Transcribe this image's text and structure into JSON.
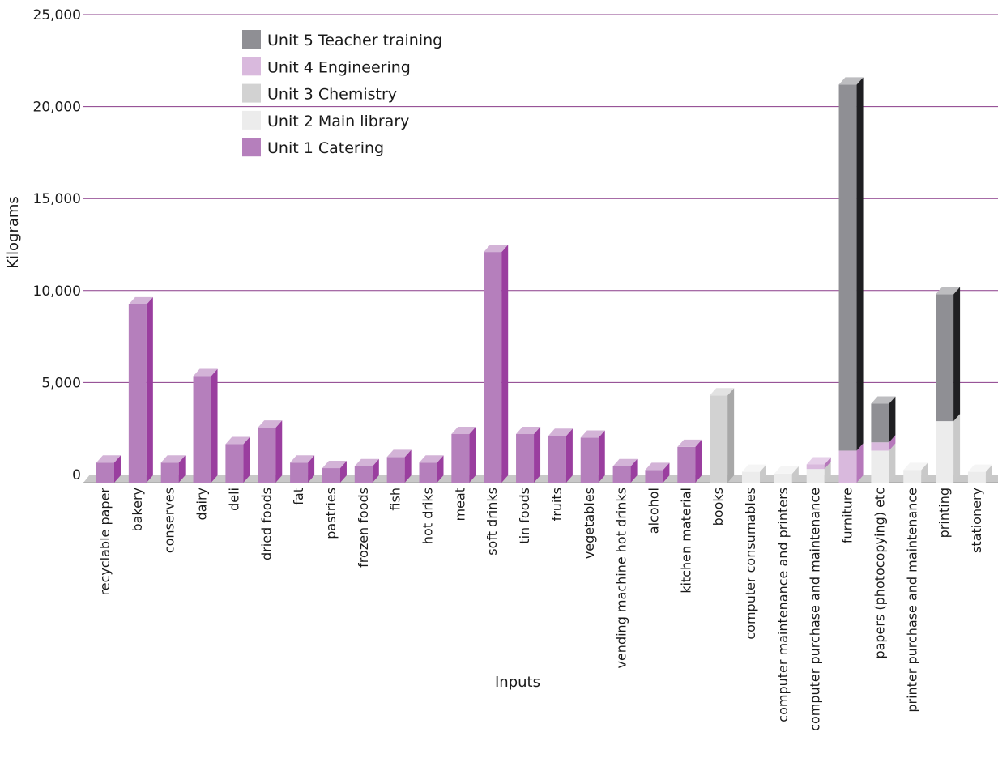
{
  "chart_data": {
    "type": "bar",
    "stacked": true,
    "three_d": true,
    "xlabel": "Inputs",
    "ylabel": "Kilograms",
    "ylim": [
      0,
      25000
    ],
    "yticks": [
      0,
      5000,
      10000,
      15000,
      20000,
      25000
    ],
    "ytick_labels": [
      "0",
      "5,000",
      "10,000",
      "15,000",
      "20,000",
      "25,000"
    ],
    "grid": true,
    "legend_position": "top-left",
    "categories": [
      "recyclable paper",
      "bakery",
      "conserves",
      "dairy",
      "deli",
      "dried foods",
      "fat",
      "pastries",
      "frozen foods",
      "fish",
      "hot driks",
      "meat",
      "soft drinks",
      "tin foods",
      "fruits",
      "vegetables",
      "vending machine hot drinks",
      "alcohol",
      "kitchen material",
      "books",
      "computer consumables",
      "computer maintenance and printers",
      "computer purchase and maintenance",
      "furniture",
      "papers (photocopying) etc",
      "printer purchase and maintenance",
      "printing",
      "stationery"
    ],
    "series": [
      {
        "name": "Unit 1 Catering",
        "color": "#b57fbc",
        "side_color": "#9a3e9f",
        "top_color": "#d3b3d7",
        "values": [
          650,
          9250,
          650,
          5350,
          1650,
          2550,
          650,
          350,
          450,
          950,
          650,
          2200,
          12100,
          2200,
          2100,
          2000,
          450,
          250,
          1500,
          0,
          0,
          0,
          0,
          0,
          0,
          0,
          0,
          0
        ]
      },
      {
        "name": "Unit 2 Main library",
        "color": "#ececec",
        "side_color": "#c9c9c9",
        "top_color": "#f5f5f5",
        "values": [
          0,
          0,
          0,
          0,
          0,
          0,
          0,
          0,
          0,
          0,
          0,
          0,
          0,
          0,
          0,
          0,
          0,
          0,
          0,
          0,
          150,
          50,
          300,
          0,
          1300,
          250,
          2900,
          150
        ]
      },
      {
        "name": "Unit 3 Chemistry",
        "color": "#d2d2d2",
        "side_color": "#a8a8a8",
        "top_color": "#e2e2e2",
        "values": [
          0,
          0,
          0,
          0,
          0,
          0,
          0,
          0,
          0,
          0,
          0,
          0,
          0,
          0,
          0,
          0,
          0,
          0,
          0,
          4300,
          0,
          0,
          0,
          0,
          0,
          0,
          0,
          0
        ]
      },
      {
        "name": "Unit 4 Engineering",
        "color": "#d9b9dd",
        "side_color": "#b678bb",
        "top_color": "#e6d0e9",
        "values": [
          0,
          0,
          0,
          0,
          0,
          0,
          0,
          0,
          0,
          0,
          0,
          0,
          0,
          0,
          0,
          0,
          0,
          0,
          0,
          0,
          0,
          0,
          250,
          1300,
          450,
          0,
          0,
          0
        ]
      },
      {
        "name": "Unit 5 Teacher training",
        "color": "#8f8f94",
        "side_color": "#1f1f22",
        "top_color": "#bdbdc0",
        "values": [
          0,
          0,
          0,
          0,
          0,
          0,
          0,
          0,
          0,
          0,
          0,
          0,
          0,
          0,
          0,
          0,
          0,
          0,
          0,
          0,
          0,
          0,
          0,
          19900,
          2100,
          0,
          6900,
          0
        ]
      }
    ]
  },
  "legend": {
    "items": [
      {
        "label": "Unit 5 Teacher training",
        "color": "#8f8f94"
      },
      {
        "label": "Unit 4 Engineering",
        "color": "#d9b9dd"
      },
      {
        "label": "Unit 3 Chemistry",
        "color": "#d2d2d2"
      },
      {
        "label": "Unit 2 Main library",
        "color": "#ececec"
      },
      {
        "label": "Unit 1 Catering",
        "color": "#b57fbc"
      }
    ]
  },
  "colors": {
    "gridline": "#8a3c8a",
    "floor": "#c8c8c8",
    "floor_edge": "#9a9a9a"
  }
}
